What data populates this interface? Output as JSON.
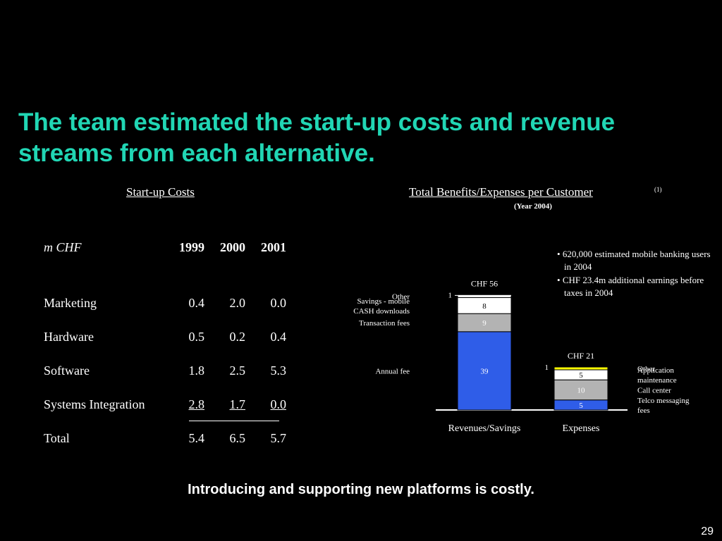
{
  "slide": {
    "title": "The team estimated the start-up costs and revenue streams from each alternative.",
    "conclusion": "Introducing and supporting new platforms is costly.",
    "page_number": "29"
  },
  "startup_costs": {
    "heading": "Start-up Costs",
    "unit_label": "m CHF",
    "years": [
      "1999",
      "2000",
      "2001"
    ],
    "rows": [
      {
        "label": "Marketing",
        "values": [
          "0.4",
          "2.0",
          "0.0"
        ]
      },
      {
        "label": "Hardware",
        "values": [
          "0.5",
          "0.2",
          "0.4"
        ]
      },
      {
        "label": "Software",
        "values": [
          "1.8",
          "2.5",
          "5.3"
        ]
      },
      {
        "label": "Systems Integration",
        "values": [
          "2.8",
          "1.7",
          "0.0"
        ]
      }
    ],
    "total": {
      "label": "Total",
      "values": [
        "5.4",
        "6.5",
        "5.7"
      ]
    }
  },
  "benefits_chart_header": {
    "heading": "Total Benefits/Expenses per Customer",
    "footnote_mark": "(1)",
    "subheading": "(Year 2004)"
  },
  "bullets": [
    "620,000 estimated mobile banking users in 2004",
    "CHF 23.4m additional earnings before taxes in 2004"
  ],
  "chart_data": {
    "type": "bar",
    "stacked": true,
    "title": "Total Benefits/Expenses per Customer",
    "subtitle": "(Year 2004)",
    "categories": [
      "Revenues/Savings",
      "Expenses"
    ],
    "totals": [
      "CHF 56",
      "CHF 21"
    ],
    "ylim": [
      0,
      56
    ],
    "stacks": [
      {
        "category": "Revenues/Savings",
        "segments": [
          {
            "name": "Annual fee",
            "value": 39,
            "color": "#2f5de8",
            "label_color": "#ffffff"
          },
          {
            "name": "Transaction fees",
            "value": 9,
            "color": "#b3b3b3",
            "label_color": "#ffffff"
          },
          {
            "name": "Savings - mobile CASH downloads",
            "value": 8,
            "color": "#ffffff",
            "label_color": "#000000"
          },
          {
            "name": "Other",
            "value": 1,
            "color": "#ffffff",
            "label_color": "#000000"
          }
        ]
      },
      {
        "category": "Expenses",
        "segments": [
          {
            "name": "Telco messaging fees",
            "value": 5,
            "color": "#2f5de8",
            "label_color": "#ffffff"
          },
          {
            "name": "Call center",
            "value": 10,
            "color": "#b3b3b3",
            "label_color": "#ffffff"
          },
          {
            "name": "Application maintenance",
            "value": 5,
            "color": "#ffffff",
            "label_color": "#000000"
          },
          {
            "name": "Other",
            "value": 1,
            "color": "#ffff00",
            "label_color": "#ffffff"
          }
        ]
      }
    ]
  }
}
